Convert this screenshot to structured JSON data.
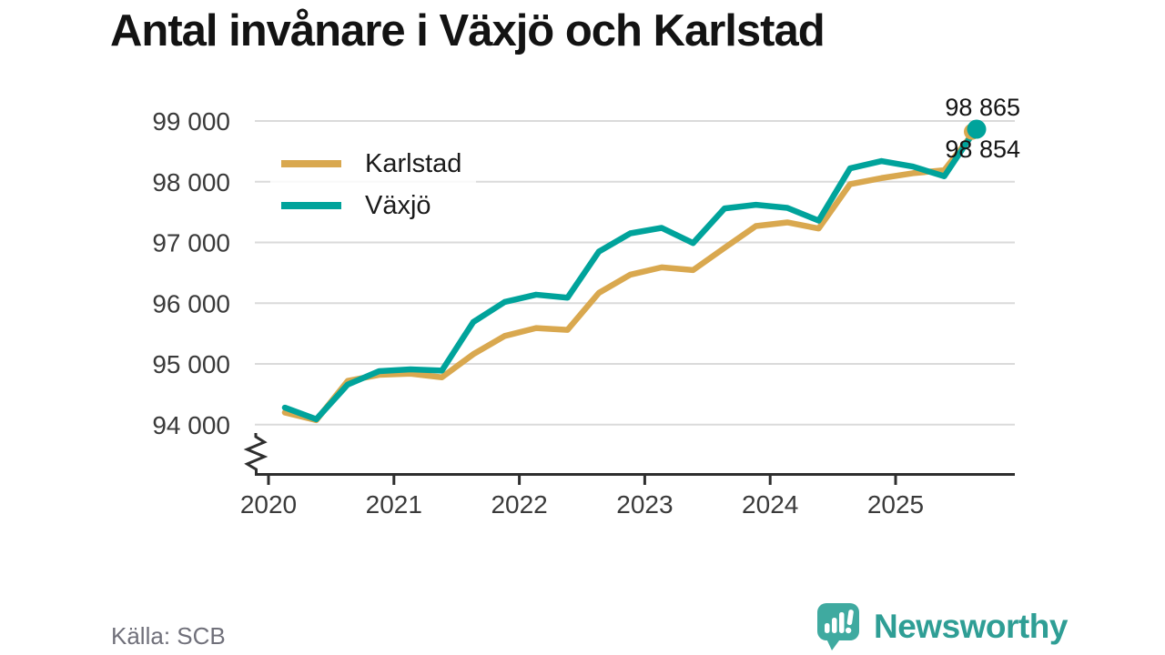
{
  "title": "Antal invånare i Växjö och Karlstad",
  "source": "Källa: SCB",
  "brand": {
    "name": "Newsworthy",
    "text_color": "#2f9e95",
    "icon_color": "#3faaa0"
  },
  "chart_data": {
    "type": "line",
    "title": "Antal invånare i Växjö och Karlstad",
    "xlabel": "",
    "ylabel": "",
    "grid": "horizontal",
    "legend_position": "top-left",
    "y_axis_break": true,
    "ylim": [
      94000,
      99000
    ],
    "y_ticks": [
      {
        "label": "94 000",
        "value": 94000
      },
      {
        "label": "95 000",
        "value": 95000
      },
      {
        "label": "96 000",
        "value": 96000
      },
      {
        "label": "97 000",
        "value": 97000
      },
      {
        "label": "98 000",
        "value": 98000
      },
      {
        "label": "99 000",
        "value": 99000
      }
    ],
    "x_ticks": [
      {
        "label": "2020"
      },
      {
        "label": "2021"
      },
      {
        "label": "2022"
      },
      {
        "label": "2023"
      },
      {
        "label": "2024"
      },
      {
        "label": "2025"
      }
    ],
    "x_quarters": [
      "2020 K1",
      "2020 K2",
      "2020 K3",
      "2020 K4",
      "2021 K1",
      "2021 K2",
      "2021 K3",
      "2021 K4",
      "2022 K1",
      "2022 K2",
      "2022 K3",
      "2022 K4",
      "2023 K1",
      "2023 K2",
      "2023 K3",
      "2023 K4",
      "2024 K1",
      "2024 K2",
      "2024 K3",
      "2024 K4",
      "2025 K1",
      "2025 K2",
      "2025 K3"
    ],
    "series": [
      {
        "name": "Karlstad",
        "color": "#d9a84f",
        "end_label": "98 854",
        "end_value": 98854,
        "values": [
          94200,
          94075,
          94720,
          94820,
          94840,
          94780,
          95160,
          95460,
          95590,
          95560,
          96170,
          96470,
          96590,
          96545,
          96910,
          97270,
          97330,
          97230,
          97960,
          98060,
          98140,
          98190,
          98854
        ]
      },
      {
        "name": "Växjö",
        "color": "#00a39b",
        "end_label": "98 865",
        "end_value": 98865,
        "values": [
          94280,
          94090,
          94660,
          94880,
          94910,
          94890,
          95690,
          96020,
          96140,
          96090,
          96850,
          97150,
          97240,
          96990,
          97560,
          97620,
          97570,
          97360,
          98220,
          98340,
          98250,
          98090,
          98865
        ]
      }
    ]
  }
}
